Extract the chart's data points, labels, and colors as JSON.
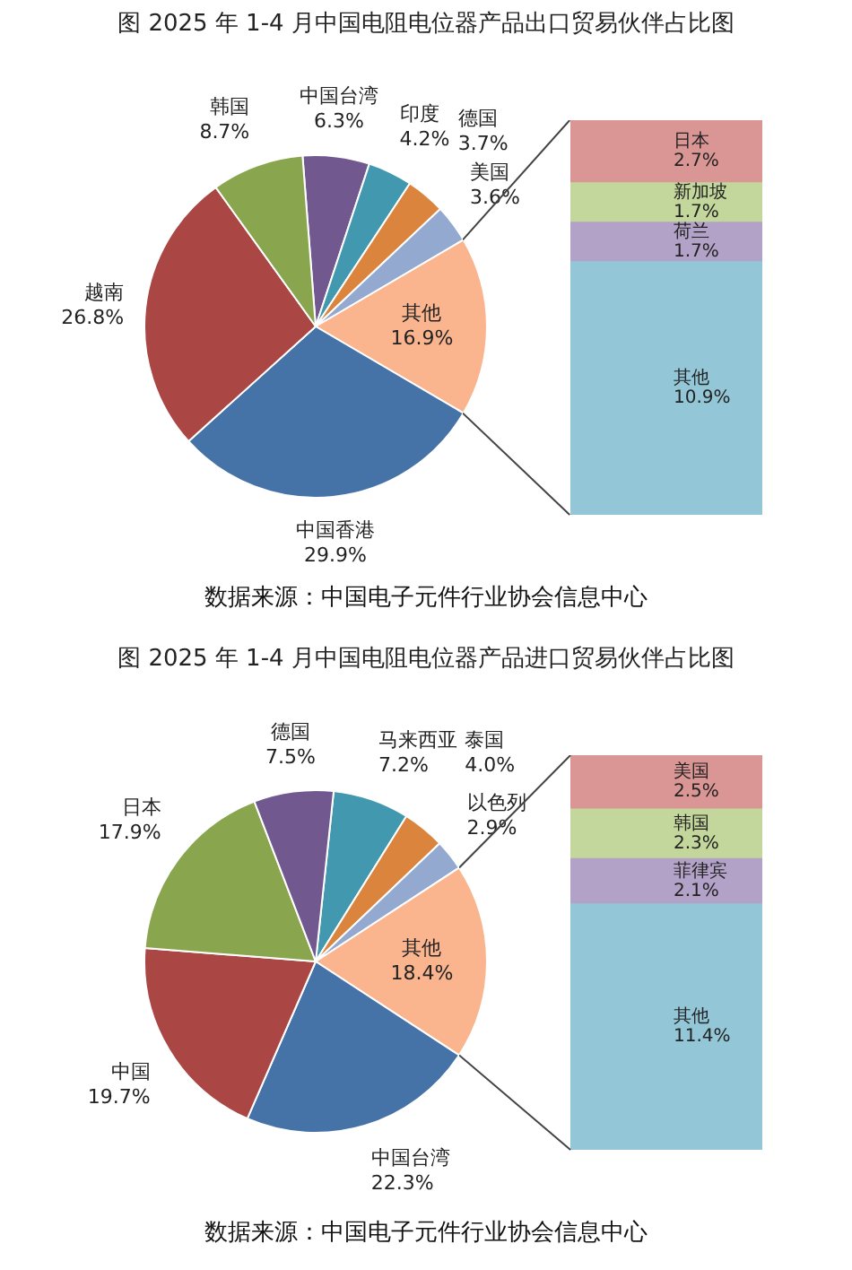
{
  "chart_data": [
    {
      "type": "pie",
      "title": "图    2025 年 1-4 月中国电阻电位器产品出口贸易伙伴占比图",
      "categories": [
        "中国台湾",
        "印度",
        "德国",
        "美国",
        "其他",
        "中国香港",
        "越南",
        "韩国"
      ],
      "values": [
        6.3,
        4.2,
        3.7,
        3.6,
        16.9,
        29.9,
        26.8,
        8.7
      ],
      "colors": [
        "#71588f",
        "#4198af",
        "#db843d",
        "#93a9cf",
        "#fab58f",
        "#4572a7",
        "#aa4643",
        "#89a54e"
      ],
      "value_labels": [
        "6.3%",
        "4.2%",
        "3.7%",
        "3.6%",
        "16.9%",
        "29.9%",
        "26.8%",
        "8.7%"
      ],
      "annotations": [
        "数据来源：中国电子元件行业协会信息中心"
      ]
    },
    {
      "type": "bar",
      "stacked": true,
      "categories": [
        null
      ],
      "series": [
        {
          "name": "其他",
          "color": "#93c6d6",
          "values": [
            10.9
          ],
          "value_labels": [
            "10.9%"
          ]
        },
        {
          "name": "荷兰",
          "color": "#b3a2c7",
          "values": [
            1.7
          ],
          "value_labels": [
            "1.7%"
          ]
        },
        {
          "name": "新加坡",
          "color": "#c3d69b",
          "values": [
            1.7
          ],
          "value_labels": [
            "1.7%"
          ]
        },
        {
          "name": "日本",
          "color": "#d99694",
          "values": [
            2.7
          ],
          "value_labels": [
            "2.7%"
          ]
        }
      ]
    },
    {
      "type": "pie",
      "title": "图    2025 年 1-4 月中国电阻电位器产品进口贸易伙伴占比图",
      "categories": [
        "马来西亚",
        "泰国",
        "以色列",
        "其他",
        "中国台湾",
        "中国",
        "日本",
        "德国"
      ],
      "values": [
        7.2,
        4.0,
        2.9,
        18.4,
        22.3,
        19.7,
        17.9,
        7.5
      ],
      "colors": [
        "#4198af",
        "#db843d",
        "#93a9cf",
        "#fab58f",
        "#4572a7",
        "#aa4643",
        "#89a54e",
        "#71588f"
      ],
      "value_labels": [
        "7.2%",
        "4.0%",
        "2.9%",
        "18.4%",
        "22.3%",
        "19.7%",
        "17.9%",
        "7.5%"
      ],
      "annotations": [
        "数据来源：中国电子元件行业协会信息中心"
      ]
    },
    {
      "type": "bar",
      "stacked": true,
      "categories": [
        null
      ],
      "series": [
        {
          "name": "其他",
          "color": "#93c6d6",
          "values": [
            11.4
          ],
          "value_labels": [
            "11.4%"
          ]
        },
        {
          "name": "菲律宾",
          "color": "#b3a2c7",
          "values": [
            2.1
          ],
          "value_labels": [
            "2.1%"
          ]
        },
        {
          "name": "韩国",
          "color": "#c3d69b",
          "values": [
            2.3
          ],
          "value_labels": [
            "2.3%"
          ]
        },
        {
          "name": "美国",
          "color": "#d99694",
          "values": [
            2.5
          ],
          "value_labels": [
            "2.5%"
          ]
        }
      ]
    }
  ]
}
